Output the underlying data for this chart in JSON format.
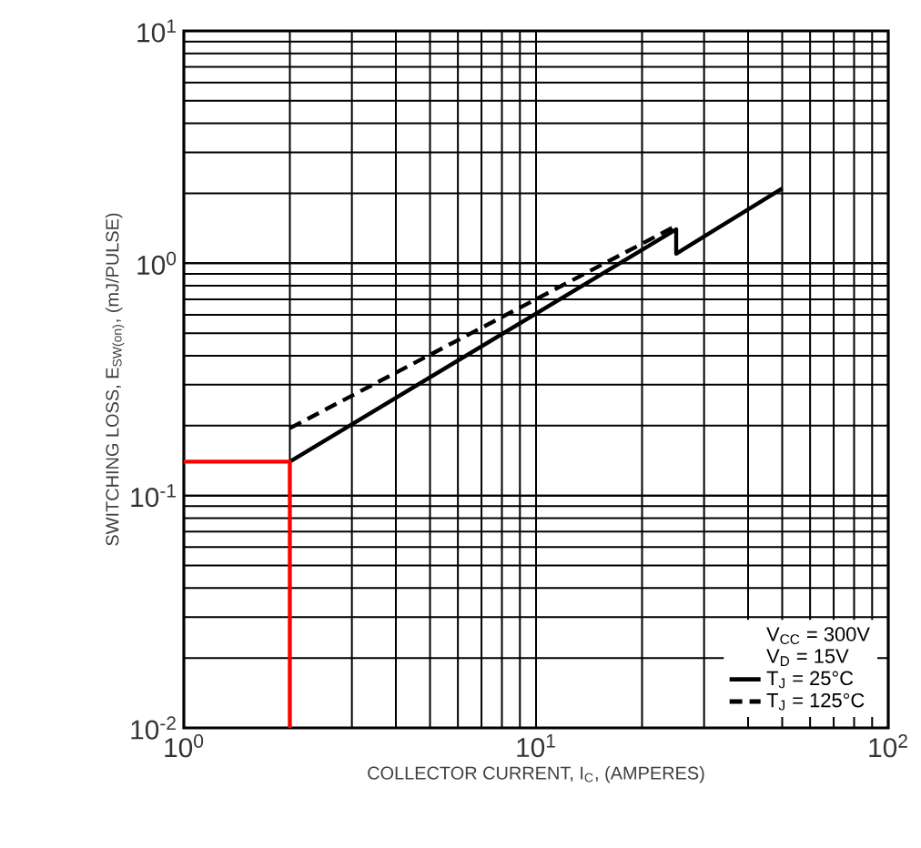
{
  "chart_data": {
    "type": "line",
    "xlabel": "COLLECTOR CURRENT, I$_{C}$, (AMPERES)",
    "ylabel": "SWITCHING LOSS, E$_{SW(on)}$, (mJ/PULSE)",
    "log": "xy",
    "grid": true,
    "legend": "bottom right",
    "xlim": [
      1,
      100
    ],
    "ylim": [
      0.01,
      10
    ],
    "xticks": [
      {
        "value": 1,
        "label": "10$^{0}$"
      },
      {
        "value": 10,
        "label": "10$^{1}$"
      },
      {
        "value": 100,
        "label": "10$^{2}$"
      }
    ],
    "yticks": [
      {
        "value": 0.01,
        "label": "10$^{-2}$"
      },
      {
        "value": 0.1,
        "label": "10$^{-1}$"
      },
      {
        "value": 1,
        "label": "10$^{0}$"
      },
      {
        "value": 10,
        "label": "10$^{1}$"
      }
    ],
    "annotations": [
      "V$_{CC}$ = 300V",
      "V$_{D}$ = 15V"
    ],
    "series": [
      {
        "name": "T$_{J}$ = 25°C",
        "color": "#000000",
        "line_style": "solid",
        "x": [
          2,
          25,
          25,
          50
        ],
        "values": [
          0.14,
          1.4,
          1.1,
          2.1
        ]
      },
      {
        "name": "T$_{J}$ = 125°C",
        "color": "#000000",
        "line_style": "dashed",
        "x": [
          2,
          25
        ],
        "values": [
          0.195,
          1.45
        ]
      },
      {
        "color": "#ff0000",
        "line_style": "solid",
        "x": [
          1,
          2,
          2
        ],
        "values": [
          0.14,
          0.14,
          0.01
        ]
      }
    ]
  }
}
